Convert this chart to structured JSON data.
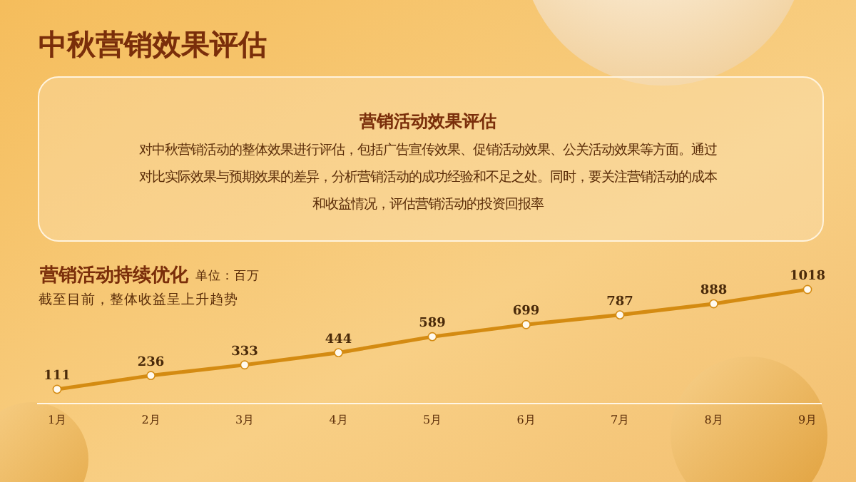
{
  "chart_data": {
    "type": "line",
    "title": "中秋营销效果评估",
    "subtitle": "截至目前，整体收益呈上升趋势",
    "ylabel": "单位：百万",
    "annotations": [
      "营销活动效果评估",
      "对中秋营销活动的整体效果进行评估，包括广告宣传效果、促销活动效果、公关活动效果等方面。通过",
      "对比实际效果与预期效果的差异，分析营销活动的成功经验和不足之处。同时，要关注营销活动的成本",
      "和收益情况，评估营销活动的投资回报率",
      "营销活动持续优化"
    ],
    "categories": [
      "1月",
      "2月",
      "3月",
      "4月",
      "5月",
      "6月",
      "7月",
      "8月",
      "9月"
    ],
    "series": [
      {
        "color": "#d48b12",
        "values": [
          111,
          236,
          333,
          444,
          589,
          699,
          787,
          888,
          1018
        ]
      }
    ],
    "data_labels": true,
    "marker": "circle"
  }
}
